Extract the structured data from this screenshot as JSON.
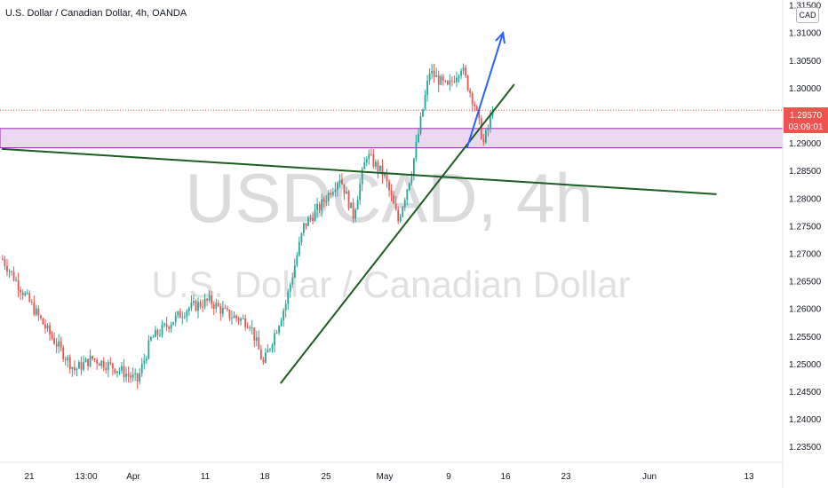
{
  "header": {
    "title": "U.S. Dollar / Canadian Dollar, 4h, OANDA",
    "currency": "CAD"
  },
  "watermark": {
    "symbol": "USDCAD, 4h",
    "description": "U.S. Dollar / Canadian Dollar"
  },
  "colors": {
    "up": "#26a69a",
    "down": "#ef5350",
    "zone_fill": "#e1bee7",
    "zone_border": "#9c27b0",
    "trendline": "#1b5e20",
    "arrow": "#2962ff",
    "price_badge": "#ef5350"
  },
  "chart_data": {
    "type": "candlestick",
    "symbol": "USDCAD",
    "timeframe": "4h",
    "source": "OANDA",
    "ylim": [
      1.2335,
      1.3155
    ],
    "y_ticks": [
      "1.31500",
      "1.31000",
      "1.30500",
      "1.30000",
      "1.29500",
      "1.29000",
      "1.28500",
      "1.28000",
      "1.27500",
      "1.27000",
      "1.26500",
      "1.26000",
      "1.25500",
      "1.25000",
      "1.24500",
      "1.24000",
      "1.23500"
    ],
    "x_ticks": [
      "21",
      "13:00",
      "Apr",
      "11",
      "18",
      "25",
      "May",
      "9",
      "16",
      "23",
      "Jun",
      "13"
    ],
    "last_price": "1.29570",
    "countdown": "03:09:01",
    "anchors": [
      {
        "i": 0,
        "p": 1.269
      },
      {
        "i": 20,
        "p": 1.256
      },
      {
        "i": 32,
        "p": 1.249
      },
      {
        "i": 40,
        "p": 1.251
      },
      {
        "i": 52,
        "p": 1.249
      },
      {
        "i": 60,
        "p": 1.247
      },
      {
        "i": 66,
        "p": 1.2545
      },
      {
        "i": 76,
        "p": 1.258
      },
      {
        "i": 82,
        "p": 1.26
      },
      {
        "i": 92,
        "p": 1.2615
      },
      {
        "i": 100,
        "p": 1.259
      },
      {
        "i": 110,
        "p": 1.2575
      },
      {
        "i": 116,
        "p": 1.25
      },
      {
        "i": 126,
        "p": 1.261
      },
      {
        "i": 134,
        "p": 1.275
      },
      {
        "i": 142,
        "p": 1.279
      },
      {
        "i": 150,
        "p": 1.284
      },
      {
        "i": 156,
        "p": 1.277
      },
      {
        "i": 162,
        "p": 1.288
      },
      {
        "i": 170,
        "p": 1.284
      },
      {
        "i": 176,
        "p": 1.276
      },
      {
        "i": 182,
        "p": 1.285
      },
      {
        "i": 190,
        "p": 1.303
      },
      {
        "i": 198,
        "p": 1.3
      },
      {
        "i": 204,
        "p": 1.304
      },
      {
        "i": 210,
        "p": 1.297
      },
      {
        "i": 214,
        "p": 1.29
      },
      {
        "i": 218,
        "p": 1.2957
      }
    ],
    "resistance_zone": {
      "top": 1.2927,
      "bottom": 1.2892
    },
    "dotted_level": 1.296,
    "support_trendline": {
      "from": {
        "i": 124,
        "p": 1.2465
      },
      "to": {
        "i": 228,
        "p": 1.3007
      }
    },
    "long_trendline": {
      "from": {
        "i": 0,
        "p": 1.289
      },
      "to": {
        "i": 318,
        "p": 1.2808
      }
    },
    "projection_arrow": {
      "from": {
        "i": 207,
        "p": 1.2892
      },
      "to": {
        "i": 223,
        "p": 1.31
      }
    }
  }
}
